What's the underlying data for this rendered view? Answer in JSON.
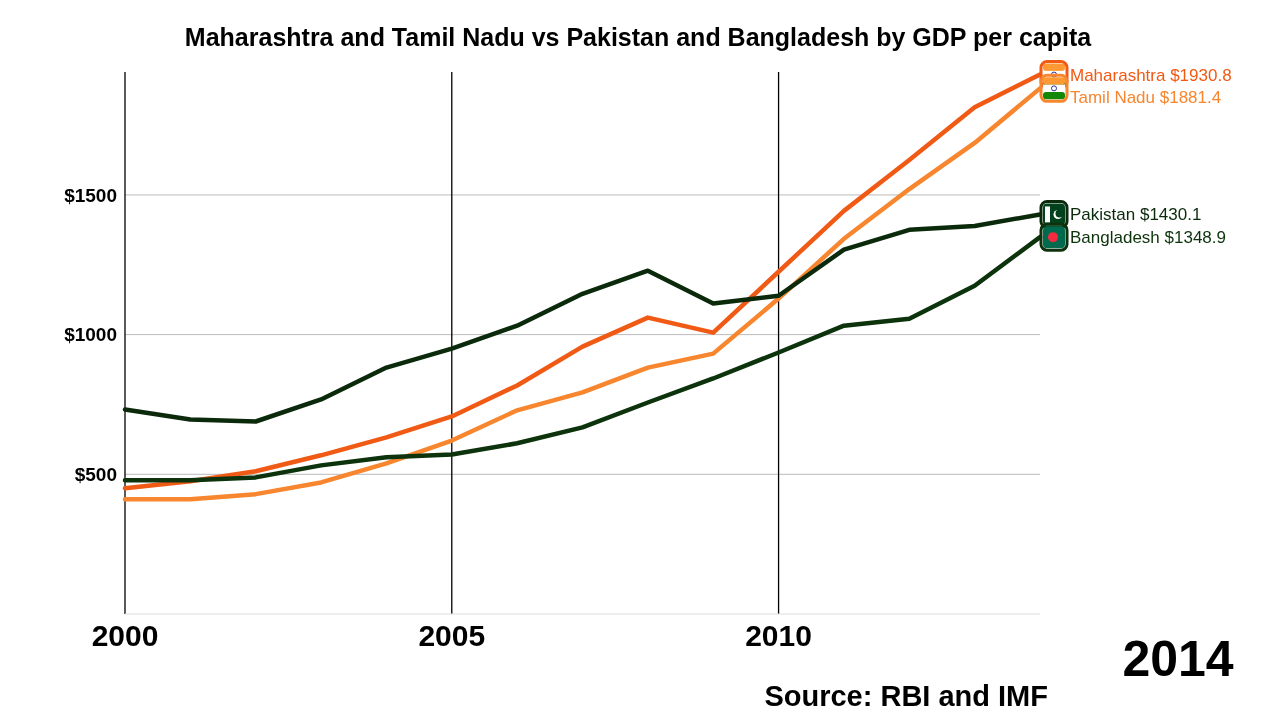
{
  "chart_data": {
    "type": "line",
    "title": "Maharashtra and Tamil Nadu vs Pakistan and Bangladesh by GDP per capita",
    "x": [
      2000,
      2001,
      2002,
      2003,
      2004,
      2005,
      2006,
      2007,
      2008,
      2009,
      2010,
      2011,
      2012,
      2013,
      2014
    ],
    "xlim": [
      2000,
      2014
    ],
    "xticks": [
      2000,
      2005,
      2010
    ],
    "ylim": [
      0,
      1940
    ],
    "yticks": [
      {
        "value": 500,
        "label": "$500"
      },
      {
        "value": 1000,
        "label": "$1000"
      },
      {
        "value": 1500,
        "label": "$1500"
      }
    ],
    "grid": true,
    "legend": false,
    "marker": "none",
    "line_style": "solid",
    "series": [
      {
        "name": "Maharashtra",
        "color": "#f05a14",
        "values": [
          450,
          475,
          511,
          568,
          632,
          707,
          818,
          957,
          1061,
          1007,
          1225,
          1443,
          1625,
          1814,
          1930.8
        ],
        "value_labels": [
          null,
          null,
          null,
          null,
          null,
          null,
          null,
          null,
          null,
          null,
          null,
          null,
          null,
          null,
          "$1930.8"
        ]
      },
      {
        "name": "Tamil Nadu",
        "color": "#f7862e",
        "values": [
          411,
          411,
          429,
          471,
          539,
          621,
          729,
          793,
          882,
          932,
          1129,
          1343,
          1521,
          1686,
          1881.4
        ],
        "value_labels": [
          null,
          null,
          null,
          null,
          null,
          null,
          null,
          null,
          null,
          null,
          null,
          null,
          null,
          null,
          "$1881.4"
        ]
      },
      {
        "name": "Pakistan",
        "color": "#0b2a0b",
        "values": [
          732,
          696,
          689,
          768,
          882,
          950,
          1032,
          1146,
          1229,
          1111,
          1139,
          1304,
          1375,
          1389,
          1430.1
        ],
        "value_labels": [
          null,
          null,
          null,
          null,
          null,
          null,
          null,
          null,
          null,
          null,
          null,
          null,
          null,
          null,
          "$1430.1"
        ]
      },
      {
        "name": "Bangladesh",
        "color": "#0c330c",
        "values": [
          479,
          479,
          489,
          532,
          561,
          571,
          611,
          668,
          757,
          843,
          936,
          1032,
          1057,
          1175,
          1348.9
        ],
        "value_labels": [
          null,
          null,
          null,
          null,
          null,
          null,
          null,
          null,
          null,
          null,
          null,
          null,
          null,
          null,
          "$1348.9"
        ]
      }
    ],
    "annotations": [
      "2014",
      "Source: RBI and IMF"
    ]
  }
}
